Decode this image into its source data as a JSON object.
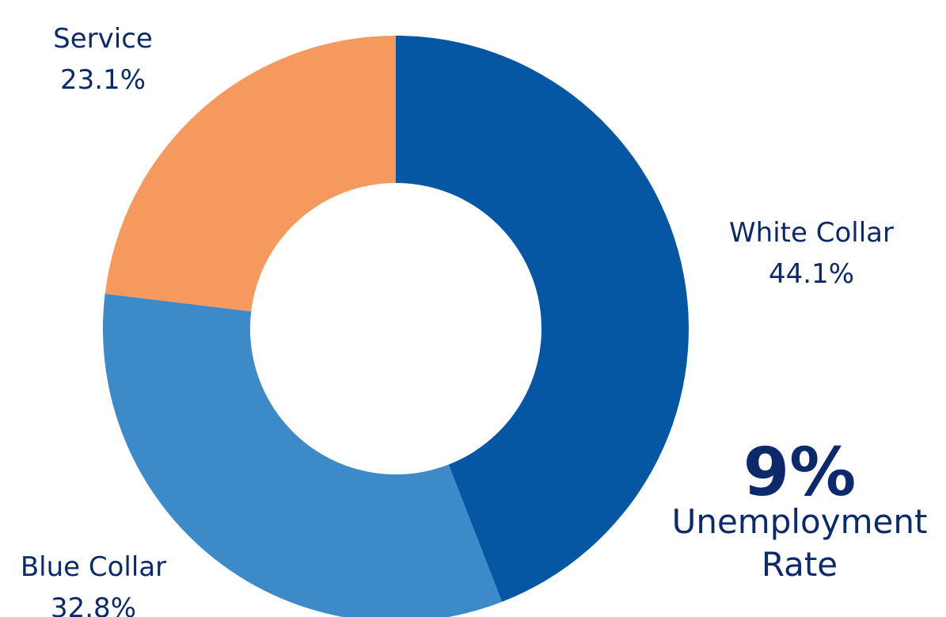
{
  "chart_data": {
    "type": "pie",
    "donut": true,
    "title": "",
    "slices": [
      {
        "label": "White Collar",
        "value": 44.1,
        "display": "44.1%",
        "color": "#0557a4"
      },
      {
        "label": "Blue Collar",
        "value": 32.8,
        "display": "32.8%",
        "color": "#3c8bc8"
      },
      {
        "label": "Service",
        "value": 23.1,
        "display": "23.1%",
        "color": "#f6995f"
      }
    ]
  },
  "stat": {
    "value": "9%",
    "caption": "Unemployment\nRate"
  }
}
